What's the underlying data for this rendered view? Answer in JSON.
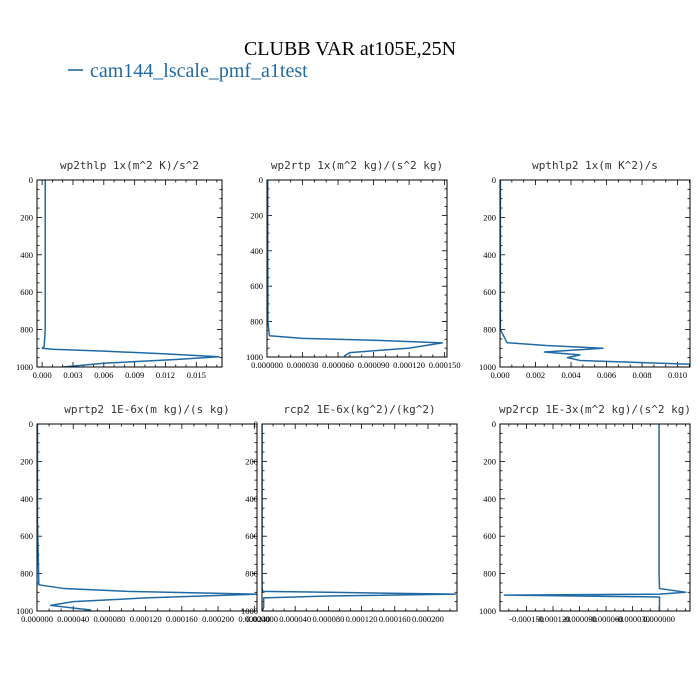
{
  "figure": {
    "title": "CLUBB VAR at105E,25N",
    "legend_label": "cam144_lscale_pmf_a1test",
    "series_color": "#1f6aa5"
  },
  "chart_data": [
    {
      "type": "line",
      "title": "wp2thlp  1x(m^2 K)/s^2",
      "xlim": [
        -0.0005,
        0.0175
      ],
      "ylim": [
        1000,
        0
      ],
      "xticks": [
        0,
        0.003,
        0.006,
        0.009,
        0.012,
        0.015
      ],
      "xtick_labels": [
        "0.000",
        "0.003",
        "0.006",
        "0.009",
        "0.012",
        "0.015"
      ],
      "yticks": [
        0,
        200,
        400,
        600,
        800,
        1000
      ],
      "ytick_labels": [
        "0",
        "200",
        "400",
        "600",
        "800",
        "1000"
      ],
      "x": [
        0.0003,
        0.0003,
        0.0003,
        0.0002,
        0.0,
        0.001,
        0.006,
        0.012,
        0.0172,
        0.013,
        0.006,
        0.002
      ],
      "y": [
        0,
        400,
        800,
        890,
        900,
        905,
        915,
        930,
        945,
        960,
        980,
        1000
      ]
    },
    {
      "type": "line",
      "title": "wp2rtp  1x(m^2 kg)/(s^2 kg)",
      "xlim": [
        0,
        0.000152
      ],
      "ylim": [
        1000,
        0
      ],
      "xticks": [
        0,
        3e-05,
        6e-05,
        9e-05,
        0.00012,
        0.00015
      ],
      "xtick_labels": [
        "0.000000",
        "0.000030",
        "0.000060",
        "0.000090",
        "0.000120",
        "0.000150"
      ],
      "yticks": [
        0,
        200,
        400,
        600,
        800,
        1000
      ],
      "ytick_labels": [
        "0",
        "200",
        "400",
        "600",
        "800",
        "1000"
      ],
      "x": [
        6e-07,
        6e-07,
        8e-07,
        2e-06,
        3e-05,
        9e-05,
        0.000148,
        0.00012,
        7e-05,
        6.5e-05
      ],
      "y": [
        0,
        400,
        800,
        880,
        895,
        905,
        920,
        950,
        975,
        995
      ]
    },
    {
      "type": "line",
      "title": "wpthlp2  1x(m K^2)/s",
      "xlim": [
        0,
        0.0107
      ],
      "ylim": [
        1000,
        0
      ],
      "xticks": [
        0,
        0.002,
        0.004,
        0.006,
        0.008,
        0.01
      ],
      "xtick_labels": [
        "0.000",
        "0.002",
        "0.004",
        "0.006",
        "0.008",
        "0.010"
      ],
      "yticks": [
        0,
        200,
        400,
        600,
        800,
        1000
      ],
      "ytick_labels": [
        "0",
        "200",
        "400",
        "600",
        "800",
        "1000"
      ],
      "x": [
        2e-05,
        2e-05,
        2e-05,
        0.0004,
        0.0026,
        0.0058,
        0.0025,
        0.0045,
        0.0038,
        0.0045,
        0.0107
      ],
      "y": [
        0,
        500,
        800,
        870,
        885,
        900,
        920,
        935,
        950,
        965,
        985
      ]
    },
    {
      "type": "line",
      "title": "wprtp2  1E-6x(m kg)/(s kg)",
      "xlim": [
        0,
        0.000243
      ],
      "ylim": [
        1000,
        0
      ],
      "xticks": [
        0,
        4e-05,
        8e-05,
        0.00012,
        0.00016,
        0.0002,
        0.00024
      ],
      "xtick_labels": [
        "0.000000",
        "0.000040",
        "0.000080",
        "0.000120",
        "0.000160",
        "0.000200",
        "0.000240"
      ],
      "yticks": [
        0,
        200,
        400,
        600,
        800,
        1000
      ],
      "ytick_labels": [
        "0",
        "200",
        "400",
        "600",
        "800",
        "1000"
      ],
      "x": [
        5e-07,
        5e-07,
        2e-06,
        3e-05,
        0.0001,
        0.000243,
        0.00012,
        4e-05,
        1.5e-05,
        6e-05
      ],
      "y": [
        0,
        500,
        860,
        880,
        895,
        910,
        930,
        950,
        970,
        995
      ]
    },
    {
      "type": "line",
      "title": "rcp2  1E-6x(kg^2)/(kg^2)",
      "xlim": [
        0,
        0.000235
      ],
      "ylim": [
        1000,
        0
      ],
      "xticks": [
        0,
        4e-05,
        8e-05,
        0.00012,
        0.00016,
        0.0002
      ],
      "xtick_labels": [
        "0.000000",
        "0.000040",
        "0.000080",
        "0.000120",
        "0.000160",
        "0.000200"
      ],
      "yticks": [
        0,
        200,
        400,
        600,
        800,
        1000
      ],
      "ytick_labels": [
        "0",
        "200",
        "400",
        "600",
        "800",
        "1000"
      ],
      "x": [
        0,
        0,
        1e-06,
        8e-05,
        0.000233,
        8e-05,
        2e-06,
        2e-06,
        5e-07
      ],
      "y": [
        0,
        880,
        895,
        900,
        910,
        920,
        930,
        980,
        1000
      ]
    },
    {
      "type": "line",
      "title": "wp2rcp  1E-3x(m^2 kg)/(s^2 kg)",
      "xlim": [
        -0.00018,
        3.5e-05
      ],
      "ylim": [
        1000,
        0
      ],
      "xticks": [
        -0.00015,
        -0.00012,
        -9e-05,
        -6e-05,
        -3e-05,
        0
      ],
      "xtick_labels": [
        "-0.000150",
        "-0.000120",
        "-0.000090",
        "-0.000060",
        "-0.000030",
        "0.000000"
      ],
      "yticks": [
        0,
        200,
        400,
        600,
        800,
        1000
      ],
      "ytick_labels": [
        "0",
        "200",
        "400",
        "600",
        "800",
        "1000"
      ],
      "x": [
        0,
        0,
        5e-07,
        3e-05,
        5e-07,
        -0.000175,
        5e-07,
        5e-07
      ],
      "y": [
        0,
        800,
        880,
        900,
        910,
        915,
        925,
        1000
      ]
    }
  ]
}
